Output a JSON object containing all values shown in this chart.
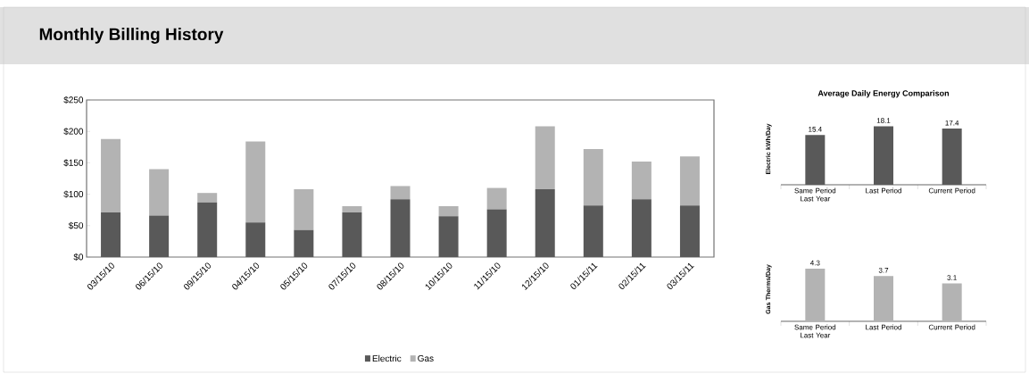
{
  "chart_data": [
    {
      "type": "bar",
      "title": "Monthly Billing History",
      "stacked": true,
      "legend": "bottom",
      "grid": false,
      "categories": [
        "03/15/10",
        "06/15/10",
        "09/15/10",
        "04/15/10",
        "05/15/10",
        "07/15/10",
        "08/15/10",
        "10/15/10",
        "11/15/10",
        "12/15/10",
        "01/15/11",
        "02/15/11",
        "03/15/11"
      ],
      "series": [
        {
          "name": "Electric",
          "color": "#595959",
          "values": [
            71,
            66,
            87,
            55,
            43,
            71,
            92,
            65,
            76,
            108,
            82,
            92,
            82
          ]
        },
        {
          "name": "Gas",
          "color": "#b3b3b3",
          "values": [
            117,
            74,
            15,
            129,
            65,
            10,
            21,
            16,
            34,
            100,
            90,
            60,
            78
          ]
        }
      ],
      "ylim": [
        0,
        250
      ],
      "yticks": [
        {
          "value": 0,
          "label": "$0"
        },
        {
          "value": 50,
          "label": "$50"
        },
        {
          "value": 100,
          "label": "$100"
        },
        {
          "value": 150,
          "label": "$150"
        },
        {
          "value": 200,
          "label": "$200"
        },
        {
          "value": 250,
          "label": "$250"
        }
      ]
    },
    {
      "type": "bar",
      "title": "Average Daily Energy Comparison",
      "ylabel": "Electric kWh/Day",
      "tick_labels": "x",
      "data_labels": true,
      "color": "#595959",
      "categories": [
        "Same Period Last Year",
        "Last Period",
        "Current Period"
      ],
      "values": [
        15.4,
        18.1,
        17.4
      ]
    },
    {
      "type": "bar",
      "ylabel": "Gas Therms/Day",
      "tick_labels": "x",
      "data_labels": true,
      "color": "#b3b3b3",
      "categories": [
        "Same Period Last Year",
        "Last Period",
        "Current Period"
      ],
      "values": [
        4.3,
        3.7,
        3.1
      ]
    }
  ]
}
